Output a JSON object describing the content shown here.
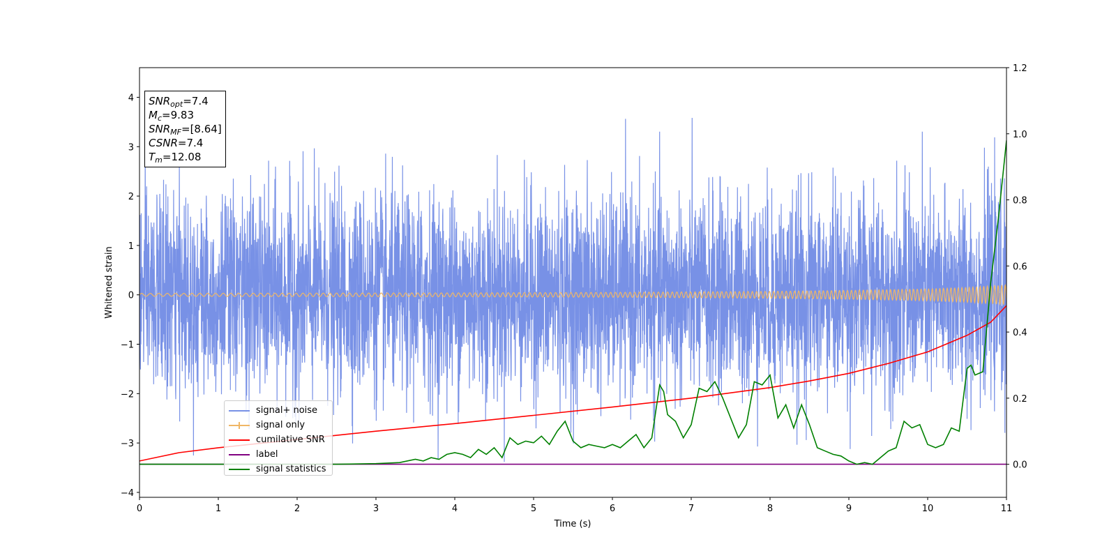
{
  "chart_data": {
    "type": "line",
    "xlabel": "Time (s)",
    "ylabel": "Whitened strain",
    "xlim": [
      0,
      11
    ],
    "ylim": [
      -4.1,
      4.6
    ],
    "y2lim": [
      -0.1,
      1.2
    ],
    "xticks": [
      "0",
      "1",
      "2",
      "3",
      "4",
      "5",
      "6",
      "7",
      "8",
      "9",
      "10",
      "11"
    ],
    "yticks": [
      "−4",
      "−3",
      "−2",
      "−1",
      "0",
      "1",
      "2",
      "3",
      "4"
    ],
    "y2ticks": [
      "0.0",
      "0.2",
      "0.4",
      "0.6",
      "0.8",
      "1.0",
      "1.2"
    ],
    "legend_position": "lower-left",
    "info_box": {
      "snr_opt_name": "SNR",
      "snr_opt_sub": "opt",
      "snr_opt_value": "=7.4",
      "mc_name": "M",
      "mc_sub": "c",
      "mc_value": "=9.83",
      "snr_mf_name": "SNR",
      "snr_mf_sub": "MF",
      "snr_mf_value": "=[8.64]",
      "csnr_name": "CSNR",
      "csnr_value": "=7.4",
      "tm_name": "T",
      "tm_sub": "m",
      "tm_value": "=12.08"
    },
    "series": [
      {
        "name": "signal+ noise",
        "color": "#7891e6",
        "axis": "left",
        "description_values": {
          "mean": 0,
          "std": 1.0,
          "duration": 11
        }
      },
      {
        "name": "signal only",
        "color": "#f0b766",
        "axis": "left",
        "envelope": {
          "x": [
            0,
            2,
            4,
            6,
            8,
            9,
            10,
            10.5,
            11
          ],
          "amp": [
            0.03,
            0.035,
            0.04,
            0.05,
            0.07,
            0.09,
            0.12,
            0.15,
            0.2
          ]
        }
      },
      {
        "name": "cumilative SNR",
        "color": "#ff0000",
        "axis": "right",
        "x": [
          0,
          0.5,
          1,
          2,
          3,
          4,
          5,
          6,
          7,
          8,
          8.5,
          9,
          9.5,
          10,
          10.5,
          10.8,
          11
        ],
        "y": [
          0.01,
          0.035,
          0.05,
          0.075,
          0.1,
          0.123,
          0.148,
          0.173,
          0.2,
          0.232,
          0.252,
          0.275,
          0.305,
          0.34,
          0.39,
          0.43,
          0.48
        ]
      },
      {
        "name": "label",
        "color": "#800080",
        "axis": "right",
        "x": [
          0,
          11
        ],
        "y": [
          0.0,
          0.0
        ]
      },
      {
        "name": "signal statistics",
        "color": "#008000",
        "axis": "right",
        "x": [
          0,
          2.5,
          3,
          3.3,
          3.5,
          3.6,
          3.7,
          3.8,
          3.9,
          4.0,
          4.1,
          4.2,
          4.3,
          4.4,
          4.5,
          4.6,
          4.7,
          4.8,
          4.9,
          5.0,
          5.1,
          5.2,
          5.3,
          5.4,
          5.5,
          5.6,
          5.7,
          5.8,
          5.9,
          6.0,
          6.1,
          6.2,
          6.3,
          6.4,
          6.5,
          6.6,
          6.65,
          6.7,
          6.8,
          6.9,
          7.0,
          7.1,
          7.2,
          7.3,
          7.4,
          7.5,
          7.6,
          7.7,
          7.8,
          7.9,
          8.0,
          8.1,
          8.2,
          8.3,
          8.4,
          8.5,
          8.6,
          8.7,
          8.8,
          8.9,
          9.0,
          9.1,
          9.2,
          9.3,
          9.4,
          9.5,
          9.6,
          9.7,
          9.8,
          9.9,
          10.0,
          10.1,
          10.2,
          10.3,
          10.4,
          10.5,
          10.55,
          10.6,
          10.7,
          10.8,
          10.9,
          11.0
        ],
        "y": [
          0.0,
          0.0,
          0.002,
          0.005,
          0.015,
          0.01,
          0.02,
          0.015,
          0.03,
          0.035,
          0.03,
          0.02,
          0.045,
          0.03,
          0.05,
          0.02,
          0.08,
          0.06,
          0.07,
          0.065,
          0.085,
          0.06,
          0.1,
          0.13,
          0.07,
          0.05,
          0.06,
          0.055,
          0.05,
          0.06,
          0.05,
          0.07,
          0.09,
          0.05,
          0.08,
          0.24,
          0.22,
          0.15,
          0.13,
          0.08,
          0.12,
          0.23,
          0.22,
          0.25,
          0.2,
          0.14,
          0.08,
          0.12,
          0.25,
          0.24,
          0.27,
          0.14,
          0.18,
          0.11,
          0.18,
          0.12,
          0.05,
          0.04,
          0.03,
          0.025,
          0.01,
          0.0,
          0.005,
          0.0,
          0.02,
          0.04,
          0.05,
          0.13,
          0.11,
          0.12,
          0.06,
          0.05,
          0.06,
          0.11,
          0.1,
          0.29,
          0.3,
          0.27,
          0.28,
          0.55,
          0.75,
          0.98
        ]
      }
    ]
  }
}
